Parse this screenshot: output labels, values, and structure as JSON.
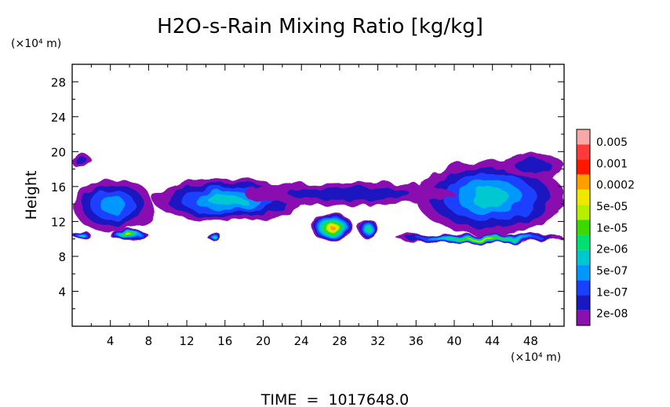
{
  "chart_data": {
    "type": "heatmap",
    "title": "H2O-s-Rain Mixing Ratio [kg/kg]",
    "ylabel": "Height",
    "y_unit": "(×10⁴ m)",
    "x_unit": "(×10⁴ m)",
    "footer": "TIME  =  1017648.0",
    "xlim": [
      0,
      51.5
    ],
    "ylim": [
      0,
      30
    ],
    "x_ticks": [
      4,
      8,
      12,
      16,
      20,
      24,
      28,
      32,
      36,
      40,
      44,
      48
    ],
    "y_ticks": [
      4,
      8,
      12,
      16,
      20,
      24,
      28
    ],
    "colorbar": {
      "labels": [
        "0.005",
        "0.001",
        "0.0002",
        "5e-05",
        "1e-05",
        "2e-06",
        "5e-07",
        "1e-07",
        "2e-08"
      ],
      "colors": [
        "#f7a8a8",
        "#ff3a3a",
        "#ff1800",
        "#ffa000",
        "#f0e800",
        "#b8ee00",
        "#3cd800",
        "#00e070",
        "#00c8d0",
        "#0098ff",
        "#1a40ff",
        "#1a18c0",
        "#8a10b0"
      ]
    },
    "regions": [
      {
        "name": "upper-layer-west",
        "x": [
          0,
          8.5
        ],
        "y": [
          10.8,
          17.0
        ],
        "level": 3
      },
      {
        "name": "upper-layer-central",
        "x": [
          8.5,
          24
        ],
        "y": [
          12.0,
          16.8
        ],
        "level": 4
      },
      {
        "name": "upper-layer-east",
        "x": [
          36,
          51.5
        ],
        "y": [
          10.5,
          19.0
        ],
        "level": 4
      },
      {
        "name": "cloud-top-west",
        "x": [
          0,
          2
        ],
        "y": [
          18.0,
          19.8
        ],
        "level": 1
      },
      {
        "name": "cloud-top-east",
        "x": [
          45,
          51.5
        ],
        "y": [
          17.0,
          19.8
        ],
        "level": 1
      },
      {
        "name": "anvil-thin-layer",
        "x": [
          18,
          40
        ],
        "y": [
          13.8,
          16.5
        ],
        "level": 1
      },
      {
        "name": "core-x28",
        "x": [
          25,
          29.5
        ],
        "y": [
          9.8,
          12.8
        ],
        "level": 9
      },
      {
        "name": "core-x30",
        "x": [
          30,
          32
        ],
        "y": [
          10.0,
          12.3
        ],
        "level": 5
      },
      {
        "name": "low-band-east",
        "x": [
          34,
          51.5
        ],
        "y": [
          9.5,
          10.6
        ],
        "level": 7
      },
      {
        "name": "cell-x6",
        "x": [
          4,
          8
        ],
        "y": [
          9.8,
          11.0
        ],
        "level": 7
      },
      {
        "name": "cell-x14",
        "x": [
          14,
          15.5
        ],
        "y": [
          10.0,
          10.8
        ],
        "level": 4
      },
      {
        "name": "cell-x1",
        "x": [
          0,
          2
        ],
        "y": [
          10.0,
          10.8
        ],
        "level": 4
      }
    ]
  }
}
